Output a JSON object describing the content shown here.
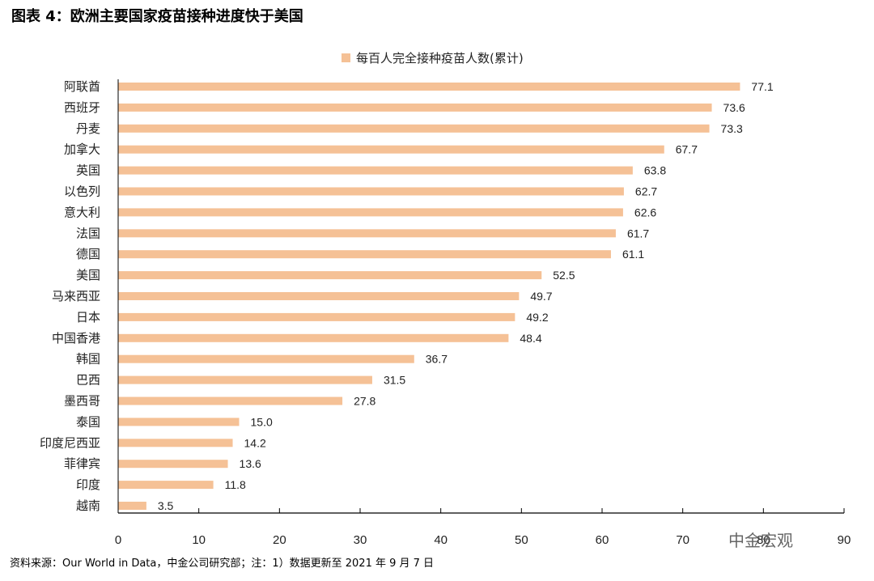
{
  "figure": {
    "title": "图表 4：欧洲主要国家疫苗接种进度快于美国",
    "source": "资料来源：Our World in Data，中金公司研究部；注：1）数据更新至 2021 年 9 月 7 日",
    "watermark": "中金宏观"
  },
  "chart_data": {
    "type": "bar",
    "orientation": "horizontal",
    "title": "",
    "xlabel": "",
    "ylabel": "",
    "xlim": [
      0,
      90
    ],
    "xticks": [
      0,
      10,
      20,
      30,
      40,
      50,
      60,
      70,
      80,
      90
    ],
    "grid": false,
    "legend_position": "top",
    "series": [
      {
        "name": "每百人完全接种疫苗人数(累计)",
        "color": "#f5c196",
        "values": [
          77.1,
          73.6,
          73.3,
          67.7,
          63.8,
          62.7,
          62.6,
          61.7,
          61.1,
          52.5,
          49.7,
          49.2,
          48.4,
          36.7,
          31.5,
          27.8,
          15.0,
          14.2,
          13.6,
          11.8,
          3.5
        ],
        "value_labels": [
          "77.1",
          "73.6",
          "73.3",
          "67.7",
          "63.8",
          "62.7",
          "62.6",
          "61.7",
          "61.1",
          "52.5",
          "49.7",
          "49.2",
          "48.4",
          "36.7",
          "31.5",
          "27.8",
          "15.0",
          "14.2",
          "13.6",
          "11.8",
          "3.5"
        ]
      }
    ],
    "categories": [
      "阿联酋",
      "西班牙",
      "丹麦",
      "加拿大",
      "英国",
      "以色列",
      "意大利",
      "法国",
      "德国",
      "美国",
      "马来西亚",
      "日本",
      "中国香港",
      "韩国",
      "巴西",
      "墨西哥",
      "泰国",
      "印度尼西亚",
      "菲律宾",
      "印度",
      "越南"
    ]
  }
}
